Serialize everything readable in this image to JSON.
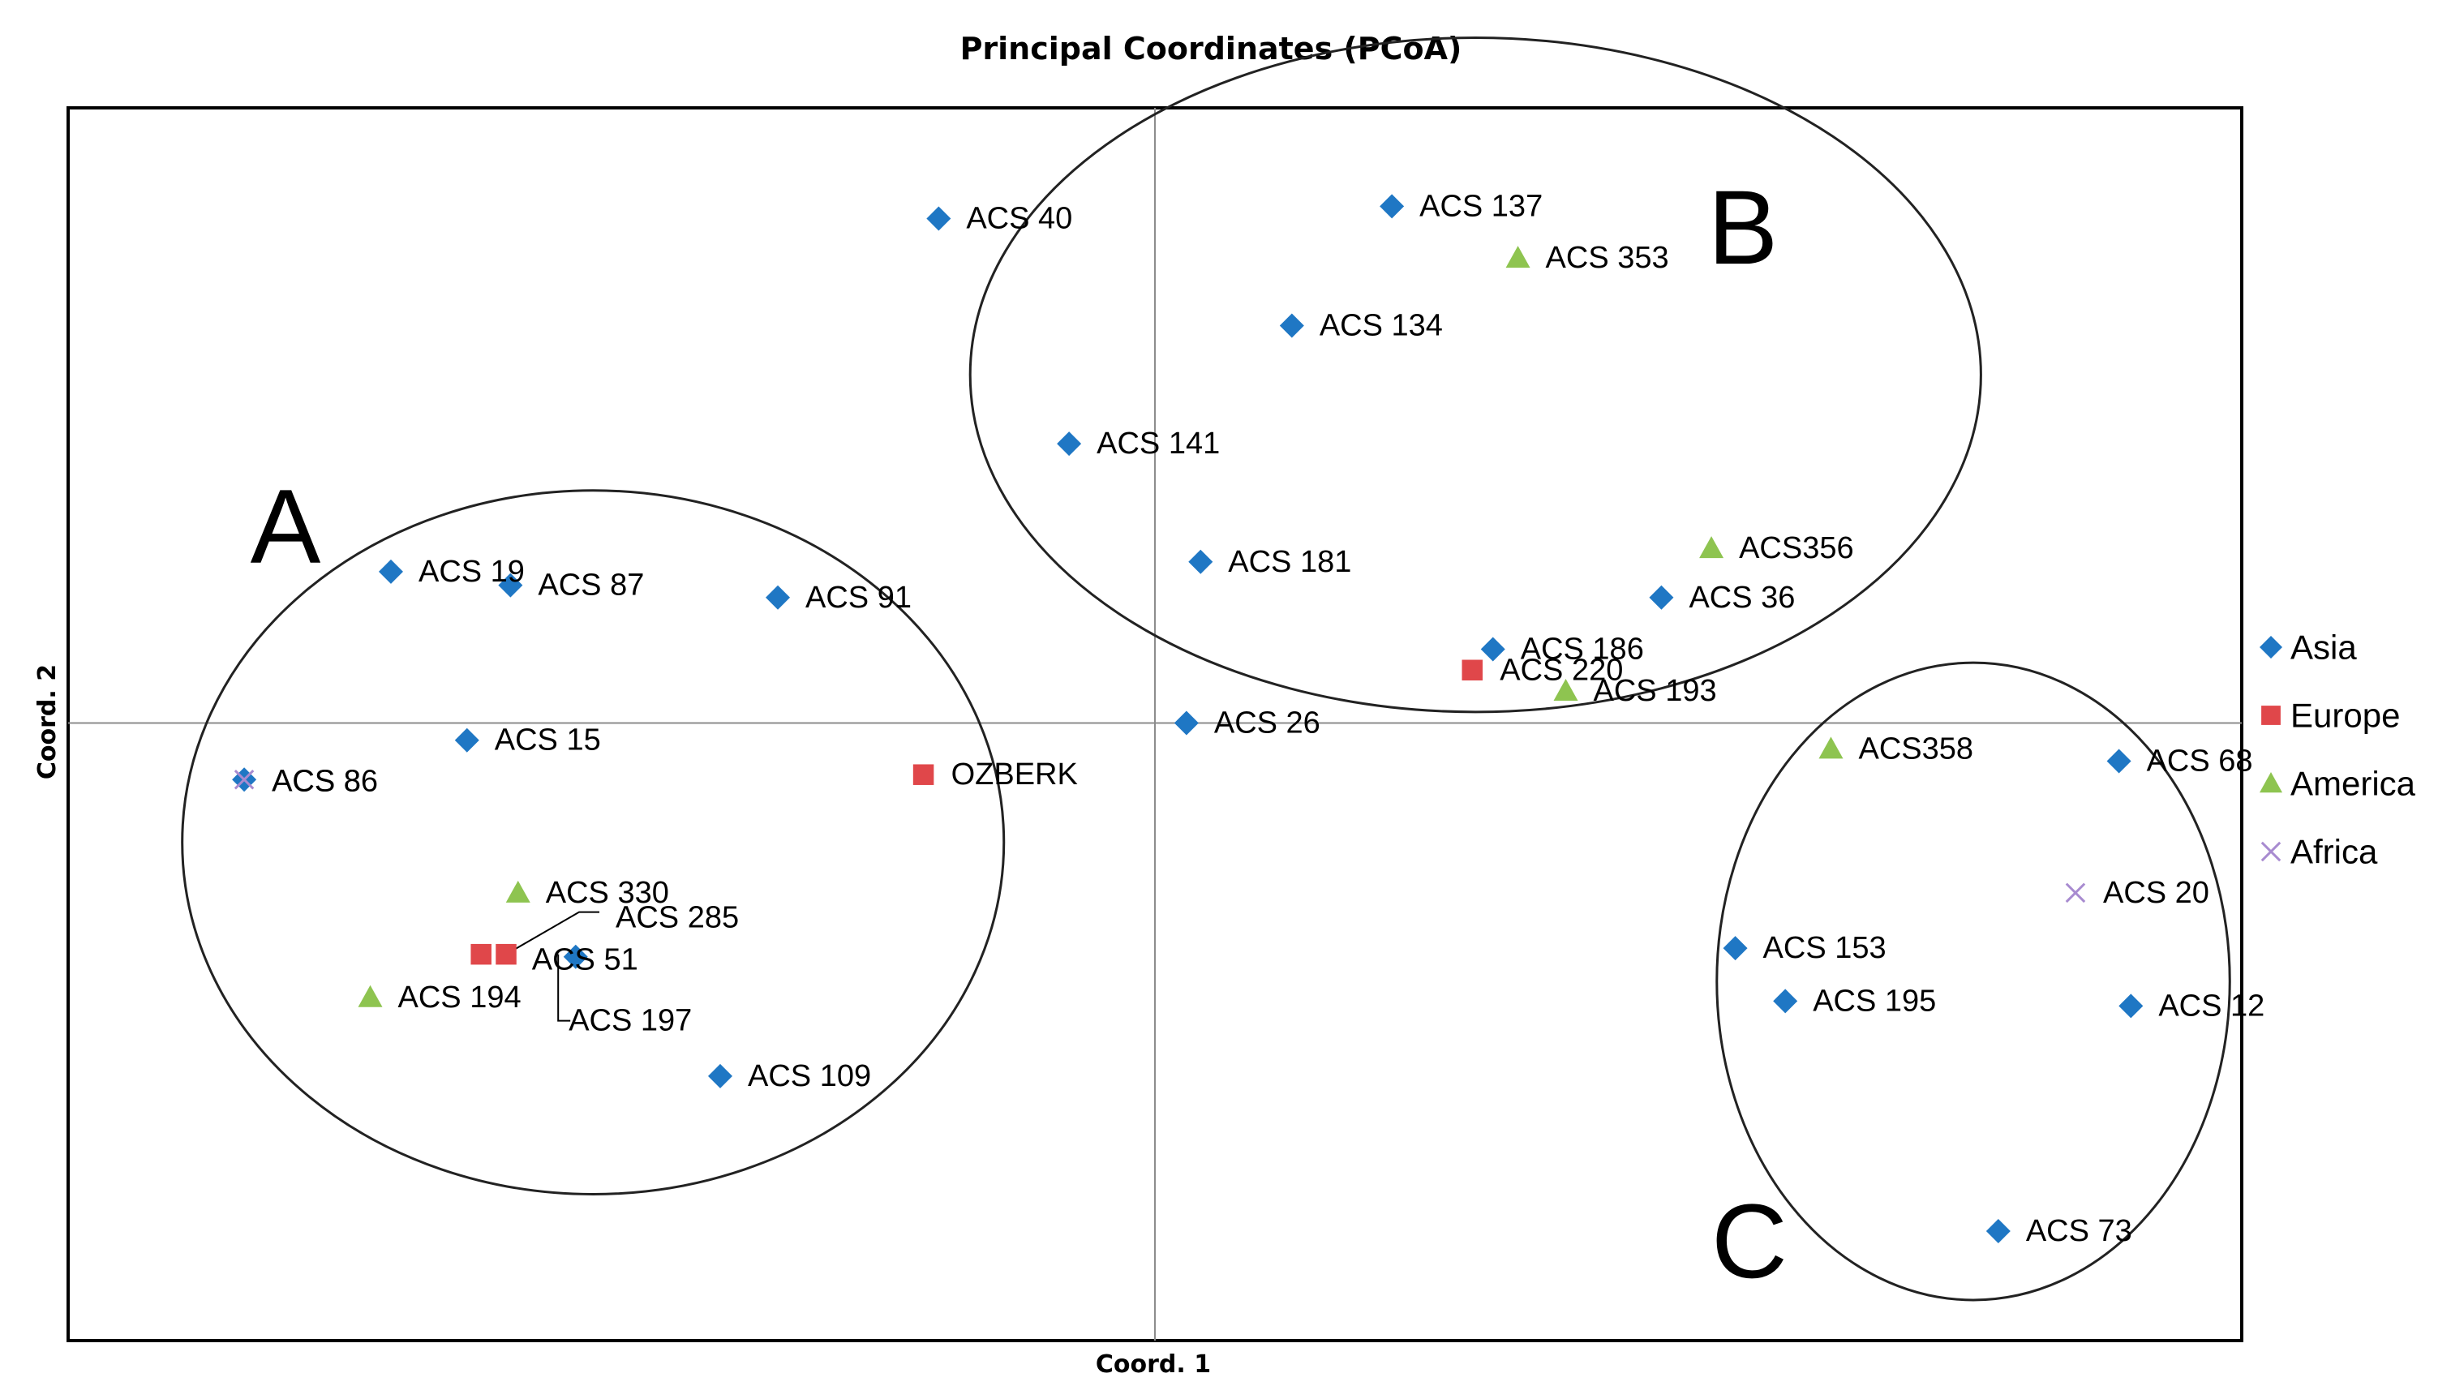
{
  "chart_data": {
    "type": "scatter",
    "title": "Principal Coordinates (PCoA)",
    "xlabel": "Coord. 1",
    "ylabel": "Coord. 2",
    "xlim": [
      -1.0,
      1.0
    ],
    "ylim": [
      -0.502,
      0.5
    ],
    "colors": {
      "Asia": "#1f77c4",
      "Europe": "#e0474a",
      "America": "#8ec450",
      "Africa": "#a88bd0"
    },
    "legend": [
      "Asia",
      "Europe",
      "America",
      "Africa"
    ],
    "points": [
      {
        "label": "ACS 40",
        "group": "Asia",
        "x": -0.199,
        "y": 0.41
      },
      {
        "label": "ACS 137",
        "group": "Asia",
        "x": 0.218,
        "y": 0.42
      },
      {
        "label": "ACS 353",
        "group": "America",
        "x": 0.334,
        "y": 0.378
      },
      {
        "label": "ACS 134",
        "group": "Asia",
        "x": 0.126,
        "y": 0.323
      },
      {
        "label": "ACS 141",
        "group": "Asia",
        "x": -0.079,
        "y": 0.227
      },
      {
        "label": "ACS 181",
        "group": "Asia",
        "x": 0.042,
        "y": 0.131
      },
      {
        "label": "ACS356",
        "group": "America",
        "x": 0.512,
        "y": 0.142
      },
      {
        "label": "ACS 36",
        "group": "Asia",
        "x": 0.466,
        "y": 0.102
      },
      {
        "label": "ACS 186",
        "group": "Asia",
        "x": 0.311,
        "y": 0.06
      },
      {
        "label": "ACS 220",
        "group": "Europe",
        "x": 0.292,
        "y": 0.043
      },
      {
        "label": "ACS 193",
        "group": "America",
        "x": 0.378,
        "y": 0.026
      },
      {
        "label": "ACS 26",
        "group": "Asia",
        "x": 0.029,
        "y": 0.0
      },
      {
        "label": "ACS 19",
        "group": "Asia",
        "x": -0.703,
        "y": 0.123
      },
      {
        "label": "ACS 87",
        "group": "Asia",
        "x": -0.593,
        "y": 0.112
      },
      {
        "label": "ACS 91",
        "group": "Asia",
        "x": -0.347,
        "y": 0.102
      },
      {
        "label": "ACS 15",
        "group": "Asia",
        "x": -0.633,
        "y": -0.014
      },
      {
        "label": "ACS 86",
        "group": "Asia",
        "x": -0.838,
        "y": -0.046
      },
      {
        "label": "ACS 8",
        "group": "Africa",
        "x": -0.838,
        "y": -0.046
      },
      {
        "label": "OZBERK",
        "group": "Europe",
        "x": -0.213,
        "y": -0.042
      },
      {
        "label": "ACS 330",
        "group": "America",
        "x": -0.586,
        "y": -0.138
      },
      {
        "label": "ACS 285",
        "group": "Europe",
        "x": -0.597,
        "y": -0.188
      },
      {
        "label": "ACS 51",
        "group": "Asia",
        "x": -0.533,
        "y": -0.19
      },
      {
        "label": "ACS 197",
        "group": "Europe",
        "x": -0.62,
        "y": -0.188
      },
      {
        "label": "ACS 194",
        "group": "America",
        "x": -0.722,
        "y": -0.223
      },
      {
        "label": "ACS 109",
        "group": "Asia",
        "x": -0.4,
        "y": -0.287
      },
      {
        "label": "ACS358",
        "group": "America",
        "x": 0.622,
        "y": -0.021
      },
      {
        "label": "ACS 68",
        "group": "Asia",
        "x": 0.887,
        "y": -0.031
      },
      {
        "label": "ACS 20",
        "group": "Africa",
        "x": 0.847,
        "y": -0.138
      },
      {
        "label": "ACS 153",
        "group": "Asia",
        "x": 0.534,
        "y": -0.183
      },
      {
        "label": "ACS 195",
        "group": "Asia",
        "x": 0.58,
        "y": -0.226
      },
      {
        "label": "ACS 12",
        "group": "Asia",
        "x": 0.898,
        "y": -0.23
      },
      {
        "label": "ACS 73",
        "group": "Asia",
        "x": 0.776,
        "y": -0.413
      }
    ],
    "clusters": [
      {
        "label": "A",
        "cx": -0.517,
        "cy": -0.097,
        "rx": 0.378,
        "ry": 0.286
      },
      {
        "label": "B",
        "cx": 0.295,
        "cy": 0.283,
        "rx": 0.465,
        "ry": 0.274
      },
      {
        "label": "C",
        "cx": 0.753,
        "cy": -0.21,
        "rx": 0.236,
        "ry": 0.259
      }
    ]
  }
}
